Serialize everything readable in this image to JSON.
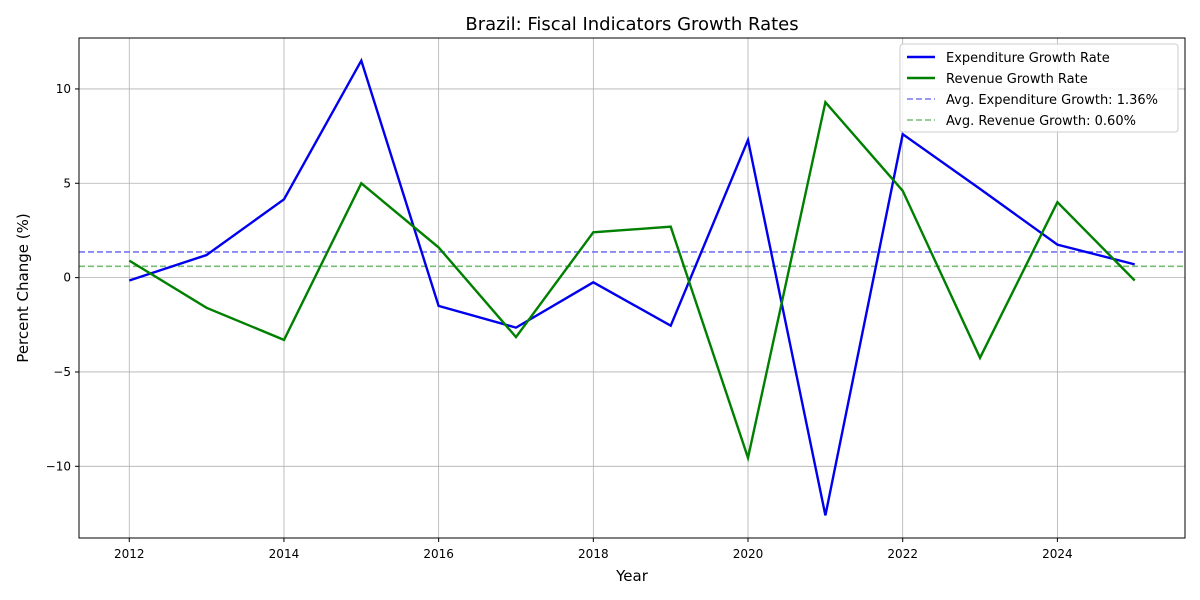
{
  "chart_data": {
    "type": "line",
    "title": "Brazil: Fiscal Indicators Growth Rates",
    "xlabel": "Year",
    "ylabel": "Percent Change (%)",
    "xlim": [
      2011.35,
      2025.65
    ],
    "ylim": [
      -13.8,
      12.7
    ],
    "x_ticks": [
      2012,
      2014,
      2016,
      2018,
      2020,
      2022,
      2024
    ],
    "y_ticks": [
      -10,
      -5,
      0,
      5,
      10
    ],
    "y_tick_labels": [
      "−10",
      "−5",
      "0",
      "5",
      "10"
    ],
    "grid": true,
    "legend_position": "top-right",
    "x": [
      2012,
      2013,
      2014,
      2015,
      2016,
      2017,
      2018,
      2019,
      2020,
      2021,
      2022,
      2023,
      2024,
      2025
    ],
    "series": [
      {
        "name": "Expenditure Growth Rate",
        "color": "#0000ee",
        "style": "solid",
        "values": [
          -0.15,
          1.2,
          4.15,
          11.5,
          -1.5,
          -2.65,
          -0.25,
          -2.55,
          7.3,
          -12.6,
          7.6,
          4.7,
          1.75,
          0.7
        ]
      },
      {
        "name": "Revenue Growth Rate",
        "color": "#008000",
        "style": "solid",
        "values": [
          0.9,
          -1.6,
          -3.3,
          5.0,
          1.6,
          -3.15,
          2.4,
          2.7,
          -9.55,
          9.3,
          4.6,
          -4.25,
          4.0,
          -0.15
        ]
      }
    ],
    "reference_lines": [
      {
        "name": "Avg. Expenditure Growth: 1.36%",
        "value": 1.36,
        "color": "#7777ee",
        "style": "dashed"
      },
      {
        "name": "Avg. Revenue Growth: 0.60%",
        "value": 0.6,
        "color": "#77bb77",
        "style": "dashed"
      }
    ]
  }
}
